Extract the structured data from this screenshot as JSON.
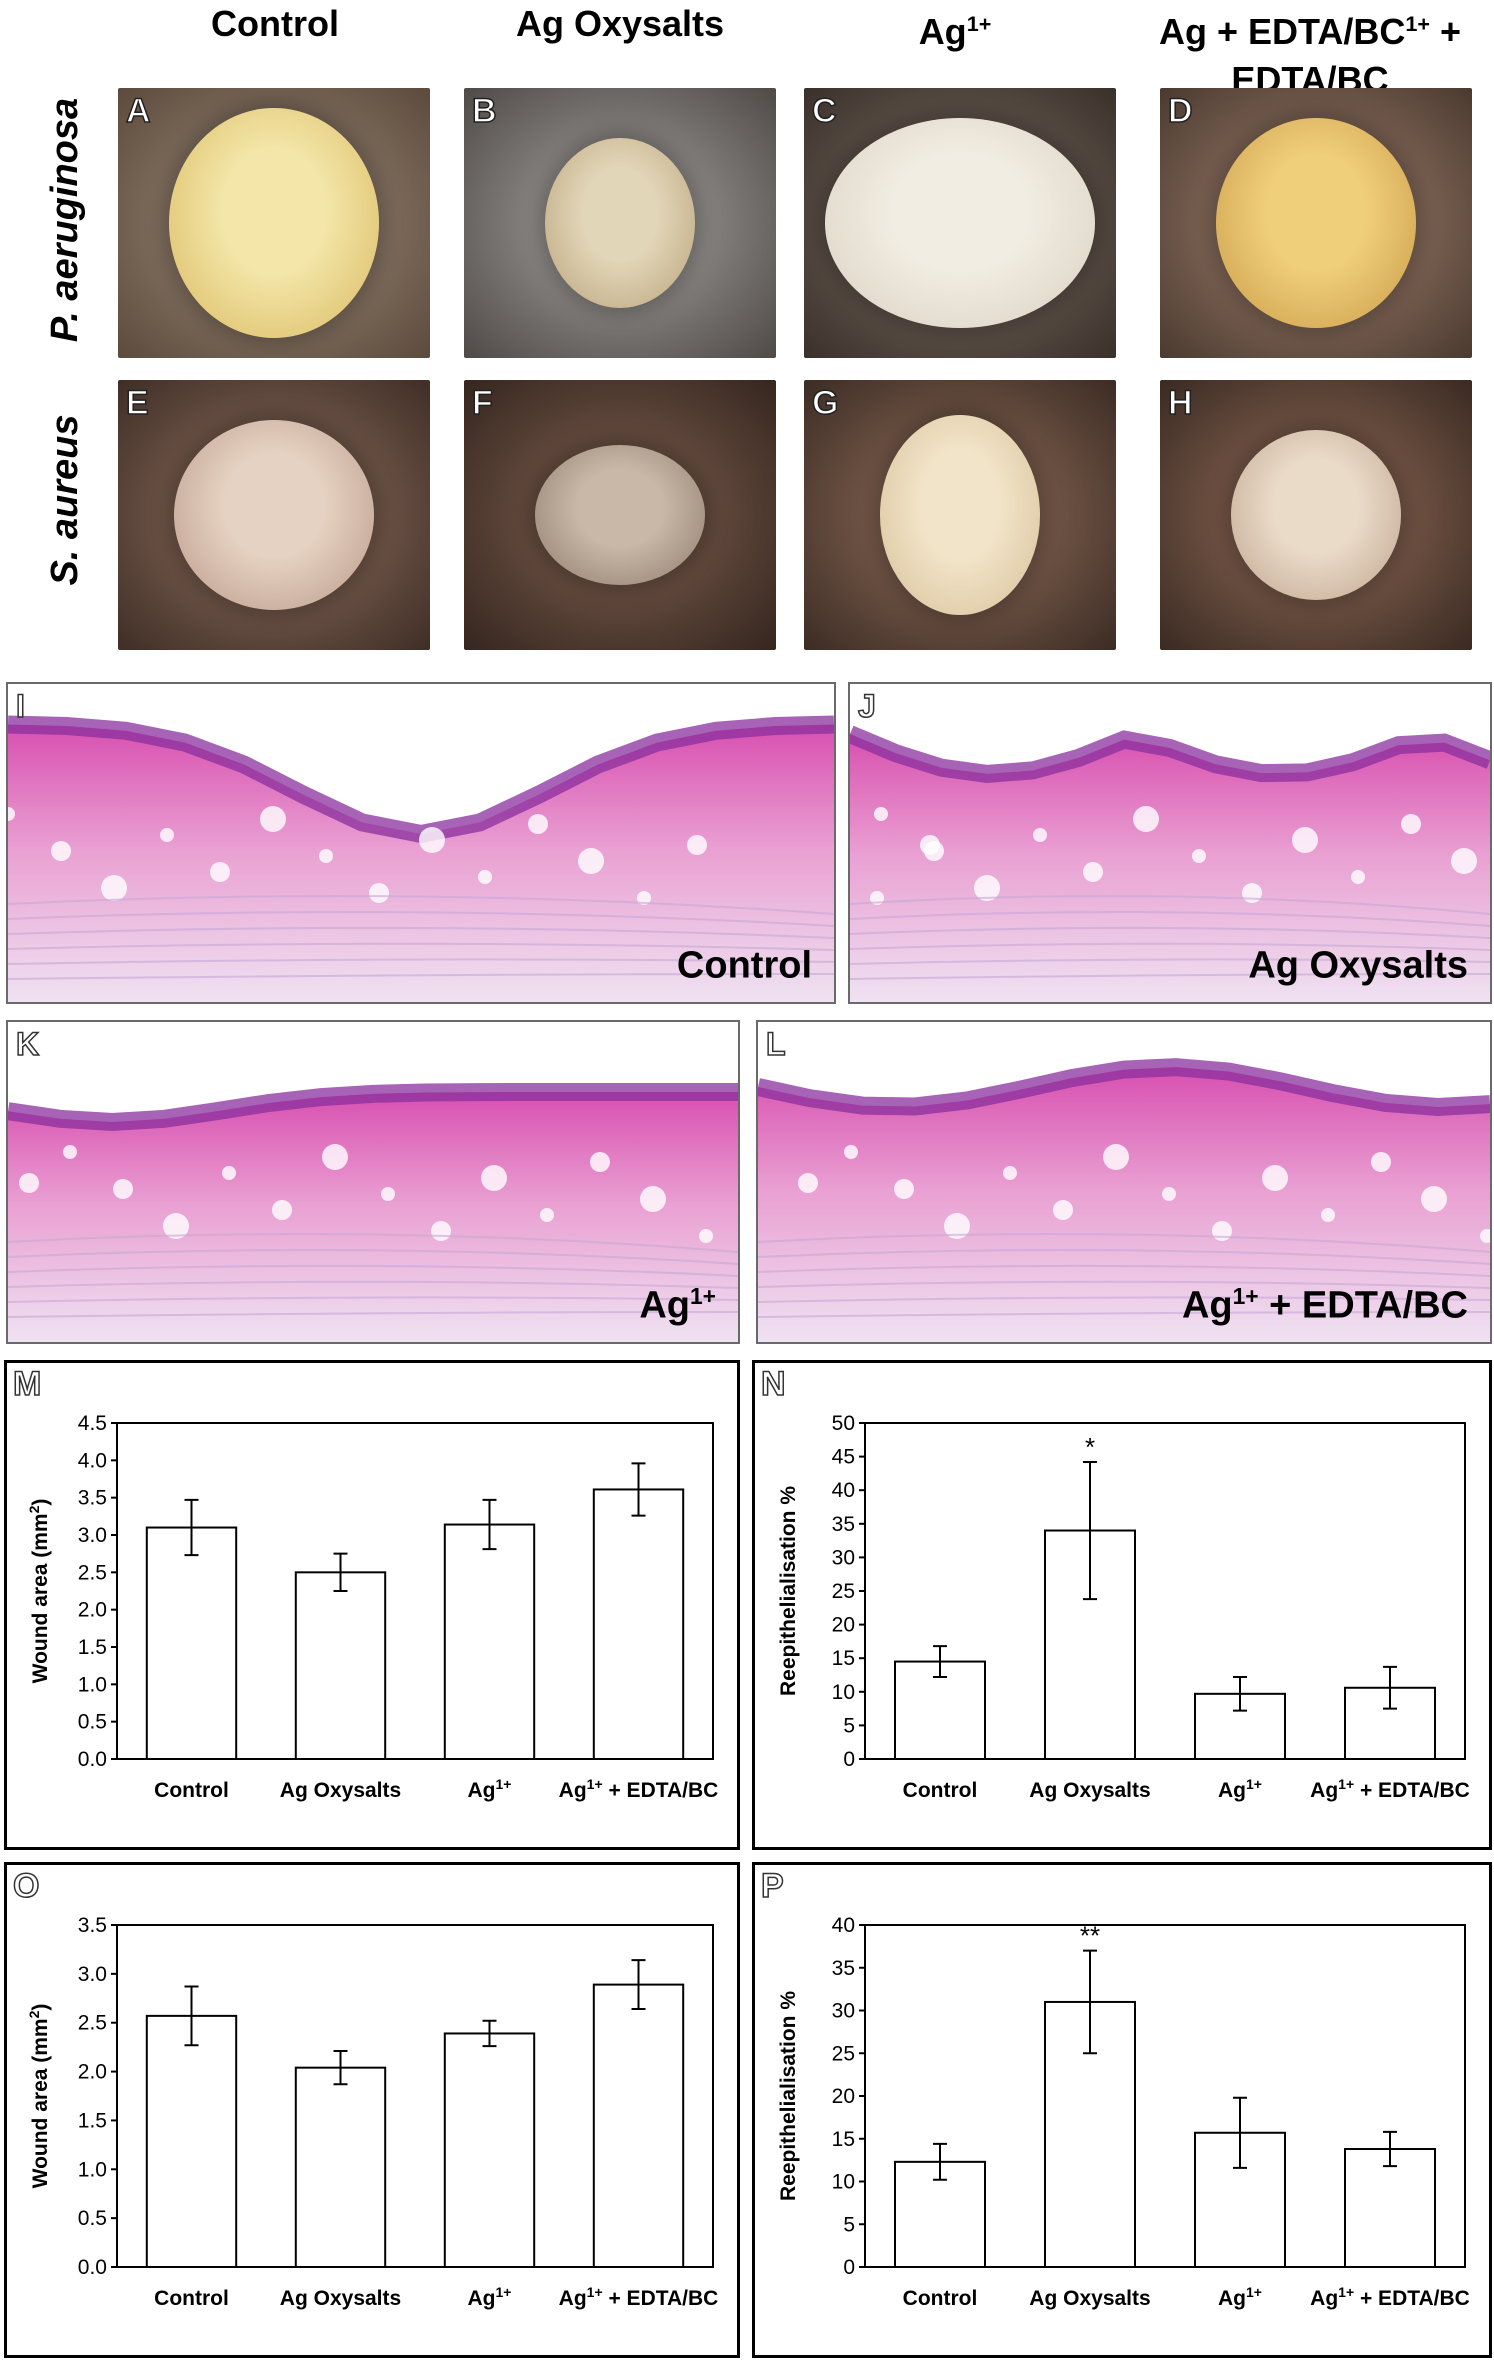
{
  "columns": [
    "Control",
    "Ag Oxysalts",
    "Ag",
    "Ag + EDTA/BC"
  ],
  "columns_sup": [
    "",
    "",
    "1+",
    "1+"
  ],
  "rows": [
    "P. aeruginosa",
    "S. aureus"
  ],
  "photo_panels": [
    "A",
    "B",
    "C",
    "D",
    "E",
    "F",
    "G",
    "H"
  ],
  "histology": [
    {
      "letter": "I",
      "title": "Control",
      "title_sup": "",
      "title_tail": ""
    },
    {
      "letter": "J",
      "title": "Ag Oxysalts",
      "title_sup": "",
      "title_tail": ""
    },
    {
      "letter": "K",
      "title": "Ag",
      "title_sup": "1+",
      "title_tail": ""
    },
    {
      "letter": "L",
      "title": "Ag",
      "title_sup": "1+",
      "title_tail": " + EDTA/BC"
    }
  ],
  "chart_data": [
    {
      "panel": "M",
      "type": "bar",
      "categories": [
        "Control",
        "Ag Oxysalts",
        "Ag",
        "Ag + EDTA/BC"
      ],
      "category_sup": [
        "",
        "",
        "1+",
        "1+"
      ],
      "values": [
        3.1,
        2.5,
        3.14,
        3.61
      ],
      "errors": [
        0.37,
        0.25,
        0.33,
        0.35
      ],
      "annotations": [
        "",
        "",
        "",
        ""
      ],
      "ylabel": "Wound area (mm",
      "ylabel_sup": "2",
      "ylabel_tail": ")",
      "ylim": [
        0,
        4.5
      ],
      "ytick_step": 0.5,
      "ytick_decimals": 1
    },
    {
      "panel": "N",
      "type": "bar",
      "categories": [
        "Control",
        "Ag Oxysalts",
        "Ag",
        "Ag + EDTA/BC"
      ],
      "category_sup": [
        "",
        "",
        "1+",
        "1+"
      ],
      "values": [
        14.5,
        34,
        9.7,
        10.6
      ],
      "errors": [
        2.3,
        10.2,
        2.5,
        3.1
      ],
      "annotations": [
        "",
        "*",
        "",
        ""
      ],
      "ylabel": "Reepithelialisation %",
      "ylabel_sup": "",
      "ylabel_tail": "",
      "ylim": [
        0,
        50
      ],
      "ytick_step": 5,
      "ytick_decimals": 0
    },
    {
      "panel": "O",
      "type": "bar",
      "categories": [
        "Control",
        "Ag Oxysalts",
        "Ag",
        "Ag + EDTA/BC"
      ],
      "category_sup": [
        "",
        "",
        "1+",
        "1+"
      ],
      "values": [
        2.57,
        2.04,
        2.39,
        2.89
      ],
      "errors": [
        0.3,
        0.17,
        0.13,
        0.25
      ],
      "annotations": [
        "",
        "",
        "",
        ""
      ],
      "ylabel": "Wound area (mm",
      "ylabel_sup": "2",
      "ylabel_tail": ")",
      "ylim": [
        0,
        3.5
      ],
      "ytick_step": 0.5,
      "ytick_decimals": 1
    },
    {
      "panel": "P",
      "type": "bar",
      "categories": [
        "Control",
        "Ag Oxysalts",
        "Ag",
        "Ag + EDTA/BC"
      ],
      "category_sup": [
        "",
        "",
        "1+",
        "1+"
      ],
      "values": [
        12.3,
        31,
        15.7,
        13.8
      ],
      "errors": [
        2.1,
        6,
        4.1,
        2
      ],
      "annotations": [
        "",
        "**",
        "",
        ""
      ],
      "ylabel": "Reepithelialisation %",
      "ylabel_sup": "",
      "ylabel_tail": "",
      "ylim": [
        0,
        40
      ],
      "ytick_step": 5,
      "ytick_decimals": 0
    }
  ]
}
